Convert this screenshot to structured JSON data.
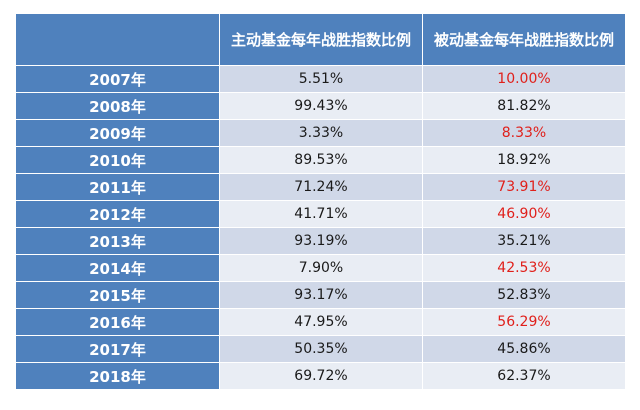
{
  "table": {
    "headers": [
      "",
      "主动基金每年战胜指数比例",
      "被动基金每年战胜指数比例"
    ],
    "rows": [
      {
        "year": "2007年",
        "active": "5.51%",
        "passive": "10.00%",
        "passive_highlight": true
      },
      {
        "year": "2008年",
        "active": "99.43%",
        "passive": "81.82%",
        "passive_highlight": false
      },
      {
        "year": "2009年",
        "active": "3.33%",
        "passive": "8.33%",
        "passive_highlight": true
      },
      {
        "year": "2010年",
        "active": "89.53%",
        "passive": "18.92%",
        "passive_highlight": false
      },
      {
        "year": "2011年",
        "active": "71.24%",
        "passive": "73.91%",
        "passive_highlight": true
      },
      {
        "year": "2012年",
        "active": "41.71%",
        "passive": "46.90%",
        "passive_highlight": true
      },
      {
        "year": "2013年",
        "active": "93.19%",
        "passive": "35.21%",
        "passive_highlight": false
      },
      {
        "year": "2014年",
        "active": "7.90%",
        "passive": "42.53%",
        "passive_highlight": true
      },
      {
        "year": "2015年",
        "active": "93.17%",
        "passive": "52.83%",
        "passive_highlight": false
      },
      {
        "year": "2016年",
        "active": "47.95%",
        "passive": "56.29%",
        "passive_highlight": true
      },
      {
        "year": "2017年",
        "active": "50.35%",
        "passive": "45.86%",
        "passive_highlight": false
      },
      {
        "year": "2018年",
        "active": "69.72%",
        "passive": "62.37%",
        "passive_highlight": false
      }
    ]
  },
  "colors": {
    "header_bg": "#4f81bd",
    "row_band_dark": "#d0d8e8",
    "row_band_light": "#e9edf4",
    "highlight_text": "#e0201b"
  }
}
